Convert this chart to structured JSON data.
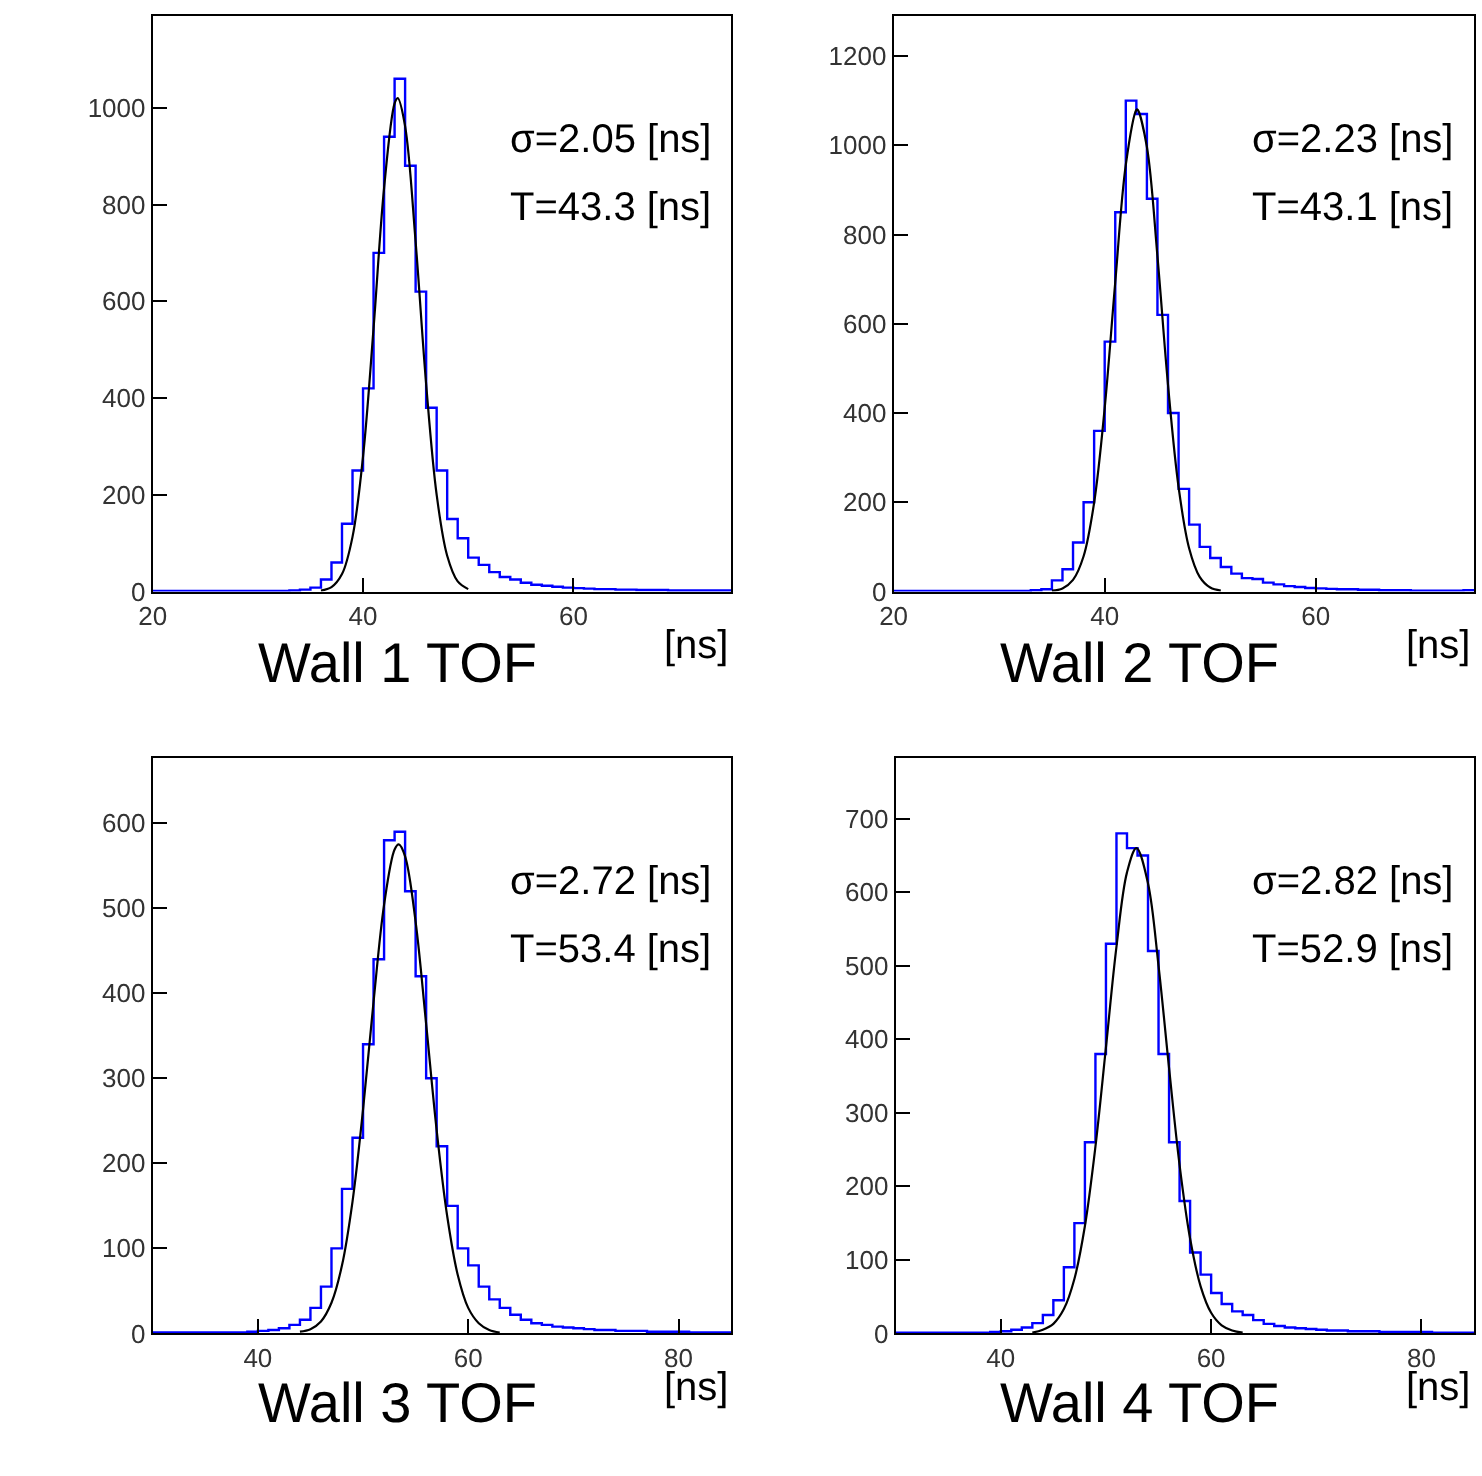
{
  "chart_data": [
    {
      "type": "histogram",
      "xlabel": "Wall 1 TOF",
      "annotations": [
        "[ns]",
        "σ=2.05 [ns]",
        "T=43.3 [ns]"
      ],
      "xlim": [
        20,
        75
      ],
      "ylim": [
        0,
        1190
      ],
      "xticks": [
        20,
        40,
        60
      ],
      "yticks": [
        0,
        200,
        400,
        600,
        800,
        1000
      ],
      "bins": [
        20,
        21,
        22,
        23,
        24,
        25,
        26,
        27,
        28,
        29,
        30,
        31,
        32,
        33,
        34,
        35,
        36,
        37,
        38,
        39,
        40,
        41,
        42,
        43,
        44,
        45,
        46,
        47,
        48,
        49,
        50,
        51,
        52,
        53,
        54,
        55,
        56,
        57,
        58,
        59,
        60,
        61,
        62,
        63,
        64,
        65,
        66,
        67,
        68,
        69,
        70,
        71,
        72,
        73,
        74,
        75
      ],
      "series": [
        {
          "color": "#0000ff",
          "values": [
            1,
            1,
            1,
            1,
            1,
            1,
            1,
            1,
            1,
            1,
            1,
            1,
            1,
            2,
            4,
            8,
            25,
            60,
            140,
            250,
            420,
            700,
            940,
            1060,
            880,
            620,
            380,
            250,
            150,
            110,
            70,
            55,
            40,
            30,
            25,
            18,
            14,
            12,
            10,
            8,
            7,
            6,
            5,
            5,
            4,
            4,
            3,
            3,
            3,
            2,
            2,
            2,
            2,
            2,
            2
          ]
        },
        {
          "type": "line",
          "color": "#000000",
          "x": [
            36,
            37,
            38,
            39,
            40,
            41,
            42,
            43,
            43.3,
            44,
            45,
            46,
            47,
            48,
            49,
            50
          ],
          "values": [
            2,
            9,
            36,
            113,
            279,
            544,
            834,
            1009,
            1020,
            962,
            723,
            429,
            200,
            74,
            21,
            5
          ]
        }
      ]
    },
    {
      "type": "histogram",
      "xlabel": "Wall 2 TOF",
      "annotations": [
        "[ns]",
        "σ=2.23 [ns]",
        "T=43.1 [ns]"
      ],
      "xlim": [
        20,
        75
      ],
      "ylim": [
        0,
        1290
      ],
      "xticks": [
        20,
        40,
        60
      ],
      "yticks": [
        0,
        200,
        400,
        600,
        800,
        1000,
        1200
      ],
      "bins": [
        20,
        21,
        22,
        23,
        24,
        25,
        26,
        27,
        28,
        29,
        30,
        31,
        32,
        33,
        34,
        35,
        36,
        37,
        38,
        39,
        40,
        41,
        42,
        43,
        44,
        45,
        46,
        47,
        48,
        49,
        50,
        51,
        52,
        53,
        54,
        55,
        56,
        57,
        58,
        59,
        60,
        61,
        62,
        63,
        64,
        65,
        66,
        67,
        68,
        69,
        70,
        71,
        72,
        73,
        74,
        75
      ],
      "series": [
        {
          "color": "#0000ff",
          "values": [
            1,
            1,
            1,
            1,
            1,
            1,
            1,
            1,
            1,
            1,
            1,
            1,
            1,
            3,
            5,
            25,
            50,
            110,
            200,
            360,
            560,
            850,
            1100,
            1070,
            880,
            620,
            400,
            230,
            150,
            100,
            75,
            55,
            40,
            30,
            28,
            20,
            16,
            12,
            10,
            8,
            7,
            6,
            5,
            5,
            4,
            4,
            3,
            3,
            3,
            2,
            2,
            2,
            2,
            2,
            3
          ]
        },
        {
          "type": "line",
          "color": "#000000",
          "x": [
            35,
            36,
            37,
            38,
            39,
            40,
            41,
            42,
            43,
            43.1,
            44,
            45,
            46,
            47,
            48,
            49,
            50,
            51
          ],
          "values": [
            2,
            7,
            26,
            79,
            199,
            411,
            693,
            956,
            1079,
            1080,
            996,
            751,
            463,
            234,
            97,
            33,
            9,
            2
          ]
        }
      ]
    },
    {
      "type": "histogram",
      "xlabel": "Wall 3 TOF",
      "annotations": [
        "[ns]",
        "σ=2.72 [ns]",
        "T=53.4 [ns]"
      ],
      "xlim": [
        30,
        85
      ],
      "ylim": [
        0,
        677
      ],
      "xticks": [
        40,
        60,
        80
      ],
      "yticks": [
        0,
        100,
        200,
        300,
        400,
        500,
        600
      ],
      "bins": [
        30,
        31,
        32,
        33,
        34,
        35,
        36,
        37,
        38,
        39,
        40,
        41,
        42,
        43,
        44,
        45,
        46,
        47,
        48,
        49,
        50,
        51,
        52,
        53,
        54,
        55,
        56,
        57,
        58,
        59,
        60,
        61,
        62,
        63,
        64,
        65,
        66,
        67,
        68,
        69,
        70,
        71,
        72,
        73,
        74,
        75,
        76,
        77,
        78,
        79,
        80,
        81,
        82,
        83,
        84,
        85
      ],
      "series": [
        {
          "color": "#0000ff",
          "values": [
            1,
            1,
            1,
            1,
            1,
            1,
            1,
            1,
            1,
            2,
            3,
            4,
            6,
            10,
            16,
            30,
            55,
            100,
            170,
            230,
            340,
            440,
            580,
            590,
            520,
            420,
            300,
            220,
            150,
            100,
            80,
            55,
            40,
            30,
            22,
            16,
            12,
            10,
            8,
            7,
            6,
            5,
            4,
            4,
            3,
            3,
            3,
            2,
            2,
            2,
            2,
            1,
            1,
            1,
            1
          ]
        },
        {
          "type": "line",
          "color": "#000000",
          "x": [
            44,
            45,
            46,
            47,
            48,
            49,
            50,
            51,
            52,
            53,
            53.4,
            54,
            55,
            56,
            57,
            58,
            59,
            60,
            61,
            62,
            63
          ],
          "values": [
            2,
            5,
            14,
            36,
            80,
            155,
            263,
            390,
            504,
            569,
            575,
            561,
            484,
            364,
            239,
            138,
            69,
            30,
            12,
            4,
            1
          ]
        }
      ]
    },
    {
      "type": "histogram",
      "xlabel": "Wall 4 TOF",
      "annotations": [
        "[ns]",
        "σ=2.82 [ns]",
        "T=52.9 [ns]"
      ],
      "xlim": [
        30,
        85
      ],
      "ylim": [
        0,
        783
      ],
      "xticks": [
        40,
        60,
        80
      ],
      "yticks": [
        0,
        100,
        200,
        300,
        400,
        500,
        600,
        700
      ],
      "bins": [
        30,
        31,
        32,
        33,
        34,
        35,
        36,
        37,
        38,
        39,
        40,
        41,
        42,
        43,
        44,
        45,
        46,
        47,
        48,
        49,
        50,
        51,
        52,
        53,
        54,
        55,
        56,
        57,
        58,
        59,
        60,
        61,
        62,
        63,
        64,
        65,
        66,
        67,
        68,
        69,
        70,
        71,
        72,
        73,
        74,
        75,
        76,
        77,
        78,
        79,
        80,
        81,
        82,
        83,
        84,
        85
      ],
      "series": [
        {
          "color": "#0000ff",
          "values": [
            1,
            1,
            1,
            1,
            1,
            1,
            1,
            1,
            1,
            2,
            3,
            5,
            8,
            14,
            25,
            45,
            90,
            150,
            260,
            380,
            530,
            680,
            660,
            650,
            520,
            380,
            260,
            180,
            110,
            80,
            55,
            40,
            30,
            25,
            18,
            13,
            10,
            8,
            7,
            6,
            5,
            4,
            4,
            3,
            3,
            3,
            2,
            2,
            2,
            2,
            2,
            1,
            1,
            1,
            1
          ]
        },
        {
          "type": "line",
          "color": "#000000",
          "x": [
            43,
            44,
            45,
            46,
            47,
            48,
            49,
            50,
            51,
            52,
            52.9,
            54,
            55,
            56,
            57,
            58,
            59,
            60,
            61,
            62,
            63
          ],
          "values": [
            1,
            5,
            13,
            33,
            74,
            146,
            254,
            389,
            526,
            627,
            660,
            612,
            500,
            361,
            229,
            129,
            64,
            28,
            11,
            4,
            1
          ]
        }
      ]
    }
  ]
}
